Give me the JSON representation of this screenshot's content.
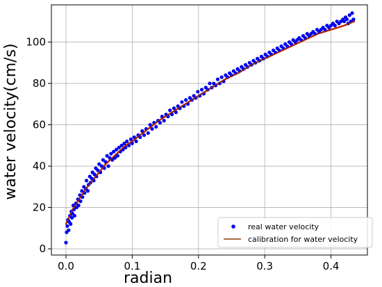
{
  "chart_data": {
    "type": "scatter",
    "title": "",
    "xlabel": "radian",
    "ylabel": "water velocity(cm/s)",
    "xlim": [
      -0.022,
      0.455
    ],
    "ylim": [
      -3,
      118
    ],
    "xticks": [
      0.0,
      0.1,
      0.2,
      0.3,
      0.4
    ],
    "xtick_labels": [
      "0.0",
      "0.1",
      "0.2",
      "0.3",
      "0.4"
    ],
    "yticks": [
      0,
      20,
      40,
      60,
      80,
      100
    ],
    "ytick_labels": [
      "0",
      "20",
      "40",
      "60",
      "80",
      "100"
    ],
    "grid": true,
    "legend_position": "bottom-right",
    "series": [
      {
        "name": "real water velocity",
        "kind": "scatter",
        "color": "#0000ee",
        "points": [
          [
            0.0,
            3
          ],
          [
            0.001,
            8
          ],
          [
            0.002,
            11
          ],
          [
            0.003,
            14
          ],
          [
            0.004,
            9
          ],
          [
            0.005,
            13
          ],
          [
            0.006,
            16
          ],
          [
            0.007,
            12
          ],
          [
            0.008,
            18
          ],
          [
            0.009,
            15
          ],
          [
            0.01,
            17
          ],
          [
            0.011,
            21
          ],
          [
            0.012,
            19
          ],
          [
            0.013,
            16
          ],
          [
            0.015,
            22
          ],
          [
            0.016,
            20
          ],
          [
            0.018,
            24
          ],
          [
            0.019,
            21
          ],
          [
            0.021,
            26
          ],
          [
            0.022,
            23
          ],
          [
            0.024,
            28
          ],
          [
            0.025,
            25
          ],
          [
            0.027,
            30
          ],
          [
            0.028,
            27
          ],
          [
            0.03,
            29
          ],
          [
            0.031,
            33
          ],
          [
            0.033,
            28
          ],
          [
            0.034,
            31
          ],
          [
            0.036,
            35
          ],
          [
            0.037,
            32
          ],
          [
            0.039,
            34
          ],
          [
            0.04,
            37
          ],
          [
            0.042,
            33
          ],
          [
            0.043,
            36
          ],
          [
            0.045,
            39
          ],
          [
            0.046,
            35
          ],
          [
            0.048,
            38
          ],
          [
            0.05,
            41
          ],
          [
            0.052,
            37
          ],
          [
            0.054,
            40
          ],
          [
            0.056,
            43
          ],
          [
            0.058,
            39
          ],
          [
            0.06,
            42
          ],
          [
            0.062,
            45
          ],
          [
            0.064,
            40
          ],
          [
            0.066,
            44
          ],
          [
            0.068,
            46
          ],
          [
            0.07,
            43
          ],
          [
            0.072,
            47
          ],
          [
            0.074,
            44
          ],
          [
            0.076,
            48
          ],
          [
            0.078,
            45
          ],
          [
            0.08,
            49
          ],
          [
            0.082,
            47
          ],
          [
            0.084,
            50
          ],
          [
            0.086,
            48
          ],
          [
            0.088,
            51
          ],
          [
            0.09,
            49
          ],
          [
            0.092,
            52
          ],
          [
            0.095,
            50
          ],
          [
            0.098,
            53
          ],
          [
            0.1,
            51
          ],
          [
            0.103,
            54
          ],
          [
            0.106,
            52
          ],
          [
            0.109,
            55
          ],
          [
            0.112,
            54
          ],
          [
            0.115,
            57
          ],
          [
            0.118,
            55
          ],
          [
            0.121,
            58
          ],
          [
            0.124,
            56
          ],
          [
            0.127,
            60
          ],
          [
            0.13,
            58
          ],
          [
            0.133,
            61
          ],
          [
            0.136,
            59
          ],
          [
            0.139,
            62
          ],
          [
            0.142,
            61
          ],
          [
            0.145,
            64
          ],
          [
            0.148,
            62
          ],
          [
            0.151,
            65
          ],
          [
            0.154,
            64
          ],
          [
            0.157,
            67
          ],
          [
            0.16,
            65
          ],
          [
            0.163,
            68
          ],
          [
            0.166,
            66
          ],
          [
            0.169,
            69
          ],
          [
            0.172,
            68
          ],
          [
            0.175,
            71
          ],
          [
            0.178,
            69
          ],
          [
            0.181,
            72
          ],
          [
            0.184,
            70
          ],
          [
            0.187,
            73
          ],
          [
            0.19,
            72
          ],
          [
            0.193,
            74
          ],
          [
            0.196,
            73
          ],
          [
            0.199,
            76
          ],
          [
            0.202,
            74
          ],
          [
            0.205,
            77
          ],
          [
            0.208,
            75
          ],
          [
            0.211,
            78
          ],
          [
            0.214,
            77
          ],
          [
            0.217,
            80
          ],
          [
            0.22,
            78
          ],
          [
            0.223,
            80
          ],
          [
            0.226,
            79
          ],
          [
            0.229,
            82
          ],
          [
            0.232,
            80
          ],
          [
            0.235,
            83
          ],
          [
            0.238,
            81
          ],
          [
            0.241,
            84
          ],
          [
            0.244,
            83
          ],
          [
            0.247,
            85
          ],
          [
            0.25,
            84
          ],
          [
            0.253,
            86
          ],
          [
            0.256,
            85
          ],
          [
            0.259,
            87
          ],
          [
            0.262,
            86
          ],
          [
            0.265,
            88
          ],
          [
            0.268,
            87
          ],
          [
            0.271,
            89
          ],
          [
            0.274,
            88
          ],
          [
            0.277,
            90
          ],
          [
            0.28,
            89
          ],
          [
            0.283,
            91
          ],
          [
            0.286,
            90
          ],
          [
            0.289,
            92
          ],
          [
            0.292,
            91
          ],
          [
            0.295,
            93
          ],
          [
            0.298,
            92
          ],
          [
            0.301,
            94
          ],
          [
            0.304,
            93
          ],
          [
            0.307,
            95
          ],
          [
            0.31,
            94
          ],
          [
            0.313,
            96
          ],
          [
            0.316,
            95
          ],
          [
            0.319,
            97
          ],
          [
            0.322,
            96
          ],
          [
            0.325,
            98
          ],
          [
            0.328,
            97
          ],
          [
            0.331,
            99
          ],
          [
            0.334,
            98
          ],
          [
            0.337,
            100
          ],
          [
            0.34,
            99
          ],
          [
            0.343,
            101
          ],
          [
            0.346,
            100
          ],
          [
            0.349,
            101
          ],
          [
            0.352,
            102
          ],
          [
            0.355,
            101
          ],
          [
            0.358,
            103
          ],
          [
            0.361,
            102
          ],
          [
            0.364,
            104
          ],
          [
            0.367,
            103
          ],
          [
            0.37,
            104
          ],
          [
            0.373,
            105
          ],
          [
            0.376,
            104
          ],
          [
            0.379,
            106
          ],
          [
            0.382,
            105
          ],
          [
            0.385,
            106
          ],
          [
            0.388,
            107
          ],
          [
            0.391,
            106
          ],
          [
            0.394,
            108
          ],
          [
            0.397,
            107
          ],
          [
            0.4,
            108
          ],
          [
            0.403,
            109
          ],
          [
            0.406,
            108
          ],
          [
            0.409,
            110
          ],
          [
            0.412,
            109
          ],
          [
            0.415,
            110
          ],
          [
            0.418,
            111
          ],
          [
            0.42,
            110
          ],
          [
            0.422,
            112
          ],
          [
            0.424,
            111
          ],
          [
            0.426,
            109
          ],
          [
            0.428,
            113
          ],
          [
            0.43,
            110
          ],
          [
            0.432,
            114
          ],
          [
            0.434,
            111
          ]
        ]
      },
      {
        "name": "calibration for water velocity",
        "kind": "line",
        "color": "#8b3a00",
        "points": [
          [
            0.0,
            12
          ],
          [
            0.01,
            19
          ],
          [
            0.02,
            24
          ],
          [
            0.03,
            29
          ],
          [
            0.04,
            33
          ],
          [
            0.05,
            37
          ],
          [
            0.06,
            41
          ],
          [
            0.07,
            44
          ],
          [
            0.08,
            47
          ],
          [
            0.09,
            50
          ],
          [
            0.1,
            52
          ],
          [
            0.12,
            57
          ],
          [
            0.14,
            62
          ],
          [
            0.16,
            66
          ],
          [
            0.18,
            70
          ],
          [
            0.2,
            74
          ],
          [
            0.22,
            78
          ],
          [
            0.24,
            82
          ],
          [
            0.26,
            85
          ],
          [
            0.28,
            89
          ],
          [
            0.3,
            92
          ],
          [
            0.32,
            95
          ],
          [
            0.34,
            98
          ],
          [
            0.36,
            101
          ],
          [
            0.38,
            104
          ],
          [
            0.4,
            106
          ],
          [
            0.42,
            108
          ],
          [
            0.435,
            110
          ]
        ]
      },
      {
        "name": "",
        "kind": "line",
        "color": "#ff0000",
        "points": [
          [
            0.0,
            12
          ],
          [
            0.01,
            19
          ],
          [
            0.02,
            24
          ],
          [
            0.03,
            29
          ],
          [
            0.04,
            33
          ],
          [
            0.05,
            37
          ],
          [
            0.06,
            41
          ],
          [
            0.07,
            44
          ],
          [
            0.08,
            47
          ],
          [
            0.09,
            50
          ],
          [
            0.1,
            52
          ],
          [
            0.12,
            57
          ],
          [
            0.14,
            62
          ],
          [
            0.16,
            66
          ],
          [
            0.18,
            70
          ],
          [
            0.2,
            74
          ],
          [
            0.22,
            78
          ],
          [
            0.24,
            82
          ],
          [
            0.26,
            85
          ],
          [
            0.28,
            89
          ],
          [
            0.3,
            92
          ],
          [
            0.32,
            95
          ],
          [
            0.34,
            98
          ],
          [
            0.36,
            101
          ],
          [
            0.38,
            104
          ],
          [
            0.4,
            106
          ],
          [
            0.42,
            108
          ],
          [
            0.435,
            110
          ]
        ]
      }
    ]
  }
}
